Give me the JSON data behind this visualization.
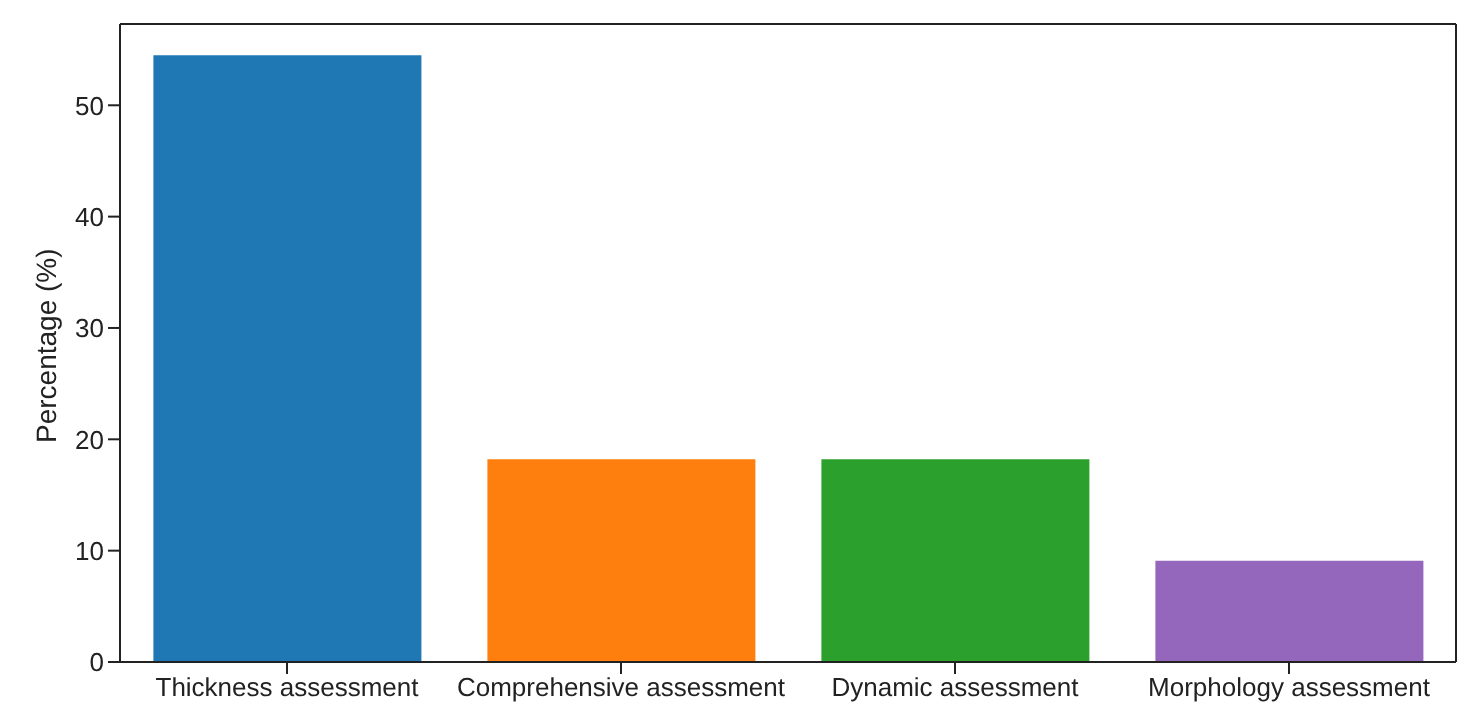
{
  "chart_data": {
    "type": "bar",
    "ylabel": "Percentage  (%)",
    "categories": [
      "Thickness assessment",
      "Comprehensive assessment",
      "Dynamic assessment",
      "Morphology assessment"
    ],
    "values": [
      54.5,
      18.2,
      18.2,
      9.1
    ],
    "colors": [
      "#1f77b4",
      "#ff7f0e",
      "#2ca02c",
      "#9467bd"
    ],
    "ylim": [
      0,
      57.3
    ],
    "yticks": [
      0,
      10,
      20,
      30,
      40,
      50
    ],
    "grid": false
  }
}
